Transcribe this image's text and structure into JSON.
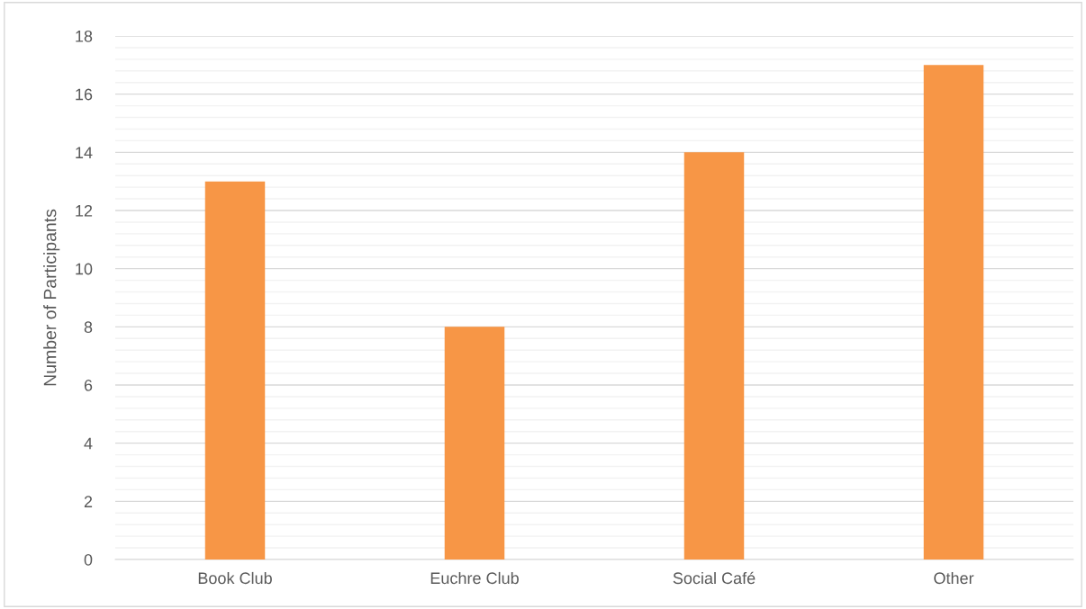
{
  "chart_data": {
    "type": "bar",
    "ylabel": "Number of Participants",
    "categories": [
      "Book Club",
      "Euchre Club",
      "Social Café",
      "Other"
    ],
    "values": [
      13,
      8,
      14,
      17
    ],
    "color": "#f79646",
    "ylim": [
      0,
      18
    ],
    "yticks": [
      0,
      2,
      4,
      6,
      8,
      10,
      12,
      14,
      16,
      18,
      {
        "value": 0.4,
        "label": null
      },
      {
        "value": 0.8,
        "label": null
      },
      {
        "value": 1.2,
        "label": null
      },
      {
        "value": 1.6,
        "label": null
      },
      {
        "value": 2.4,
        "label": null
      },
      {
        "value": 2.8,
        "label": null
      },
      {
        "value": 3.2,
        "label": null
      },
      {
        "value": 3.6,
        "label": null
      },
      {
        "value": 4.4,
        "label": null
      },
      {
        "value": 4.8,
        "label": null
      },
      {
        "value": 5.2,
        "label": null
      },
      {
        "value": 5.6,
        "label": null
      },
      {
        "value": 6.4,
        "label": null
      },
      {
        "value": 6.8,
        "label": null
      },
      {
        "value": 7.2,
        "label": null
      },
      {
        "value": 7.6,
        "label": null
      },
      {
        "value": 8.4,
        "label": null
      },
      {
        "value": 8.8,
        "label": null
      },
      {
        "value": 9.2,
        "label": null
      },
      {
        "value": 9.6,
        "label": null
      },
      {
        "value": 10.4,
        "label": null
      },
      {
        "value": 10.8,
        "label": null
      },
      {
        "value": 11.2,
        "label": null
      },
      {
        "value": 11.6,
        "label": null
      },
      {
        "value": 12.4,
        "label": null
      },
      {
        "value": 12.8,
        "label": null
      },
      {
        "value": 13.2,
        "label": null
      },
      {
        "value": 13.6,
        "label": null
      },
      {
        "value": 14.4,
        "label": null
      },
      {
        "value": 14.8,
        "label": null
      },
      {
        "value": 15.2,
        "label": null
      },
      {
        "value": 15.6,
        "label": null
      },
      {
        "value": 16.4,
        "label": null
      },
      {
        "value": 16.8,
        "label": null
      },
      {
        "value": 17.2,
        "label": null
      },
      {
        "value": 17.6,
        "label": null
      }
    ],
    "grid": "y"
  }
}
